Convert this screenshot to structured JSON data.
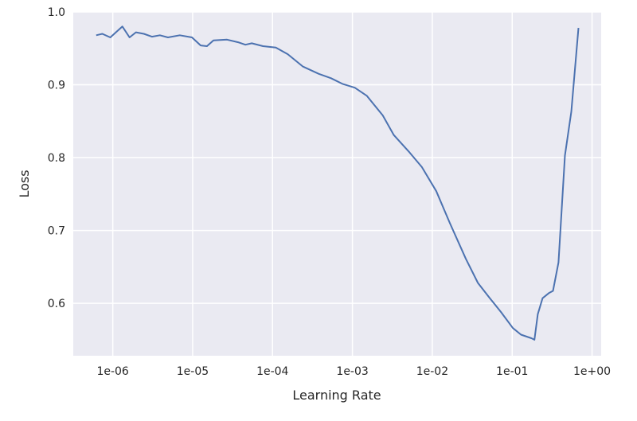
{
  "chart_data": {
    "type": "line",
    "title": "",
    "xlabel": "Learning Rate",
    "ylabel": "Loss",
    "xscale": "log",
    "xlim": [
      3.2e-07,
      1.3
    ],
    "ylim": [
      0.528,
      1.0
    ],
    "xticks": [
      1e-06,
      1e-05,
      0.0001,
      0.001,
      0.01,
      0.1,
      1
    ],
    "xtick_labels": [
      "1e-06",
      "1e-05",
      "1e-04",
      "1e-03",
      "1e-02",
      "1e-01",
      "1e+00"
    ],
    "yticks": [
      0.6,
      0.7,
      0.8,
      0.9,
      1.0
    ],
    "ytick_labels": [
      "0.6",
      "0.7",
      "0.8",
      "0.9",
      "1.0"
    ],
    "grid": true,
    "colors": {
      "background": "#eaeaf2",
      "grid": "#ffffff",
      "line": "#4c72b0"
    },
    "series": [
      {
        "x": [
          6.2e-07,
          7.4e-07,
          9.3e-07,
          1.32e-06,
          1.62e-06,
          1.95e-06,
          2.45e-06,
          3.09e-06,
          3.89e-06,
          4.9e-06,
          6.9e-06,
          9.8e-06,
          1.26e-05,
          1.51e-05,
          1.82e-05,
          2.69e-05,
          3.8e-05,
          4.57e-05,
          5.5e-05,
          7.6e-05,
          0.00011,
          0.000155,
          0.00024,
          0.00038,
          0.00054,
          0.00076,
          0.00107,
          0.00151,
          0.0024,
          0.0033,
          0.0052,
          0.0074,
          0.0112,
          0.0166,
          0.0263,
          0.0372,
          0.0525,
          0.0724,
          0.102,
          0.129,
          0.174,
          0.19,
          0.209,
          0.24,
          0.288,
          0.324,
          0.38,
          0.457,
          0.55,
          0.676
        ],
        "y": [
          0.968,
          0.97,
          0.965,
          0.98,
          0.965,
          0.972,
          0.97,
          0.966,
          0.968,
          0.965,
          0.968,
          0.965,
          0.954,
          0.953,
          0.961,
          0.962,
          0.958,
          0.955,
          0.957,
          0.953,
          0.951,
          0.942,
          0.925,
          0.915,
          0.909,
          0.901,
          0.896,
          0.885,
          0.858,
          0.831,
          0.807,
          0.787,
          0.754,
          0.71,
          0.661,
          0.628,
          0.607,
          0.588,
          0.566,
          0.557,
          0.552,
          0.55,
          0.585,
          0.607,
          0.614,
          0.617,
          0.656,
          0.803,
          0.863,
          0.978
        ]
      }
    ]
  }
}
